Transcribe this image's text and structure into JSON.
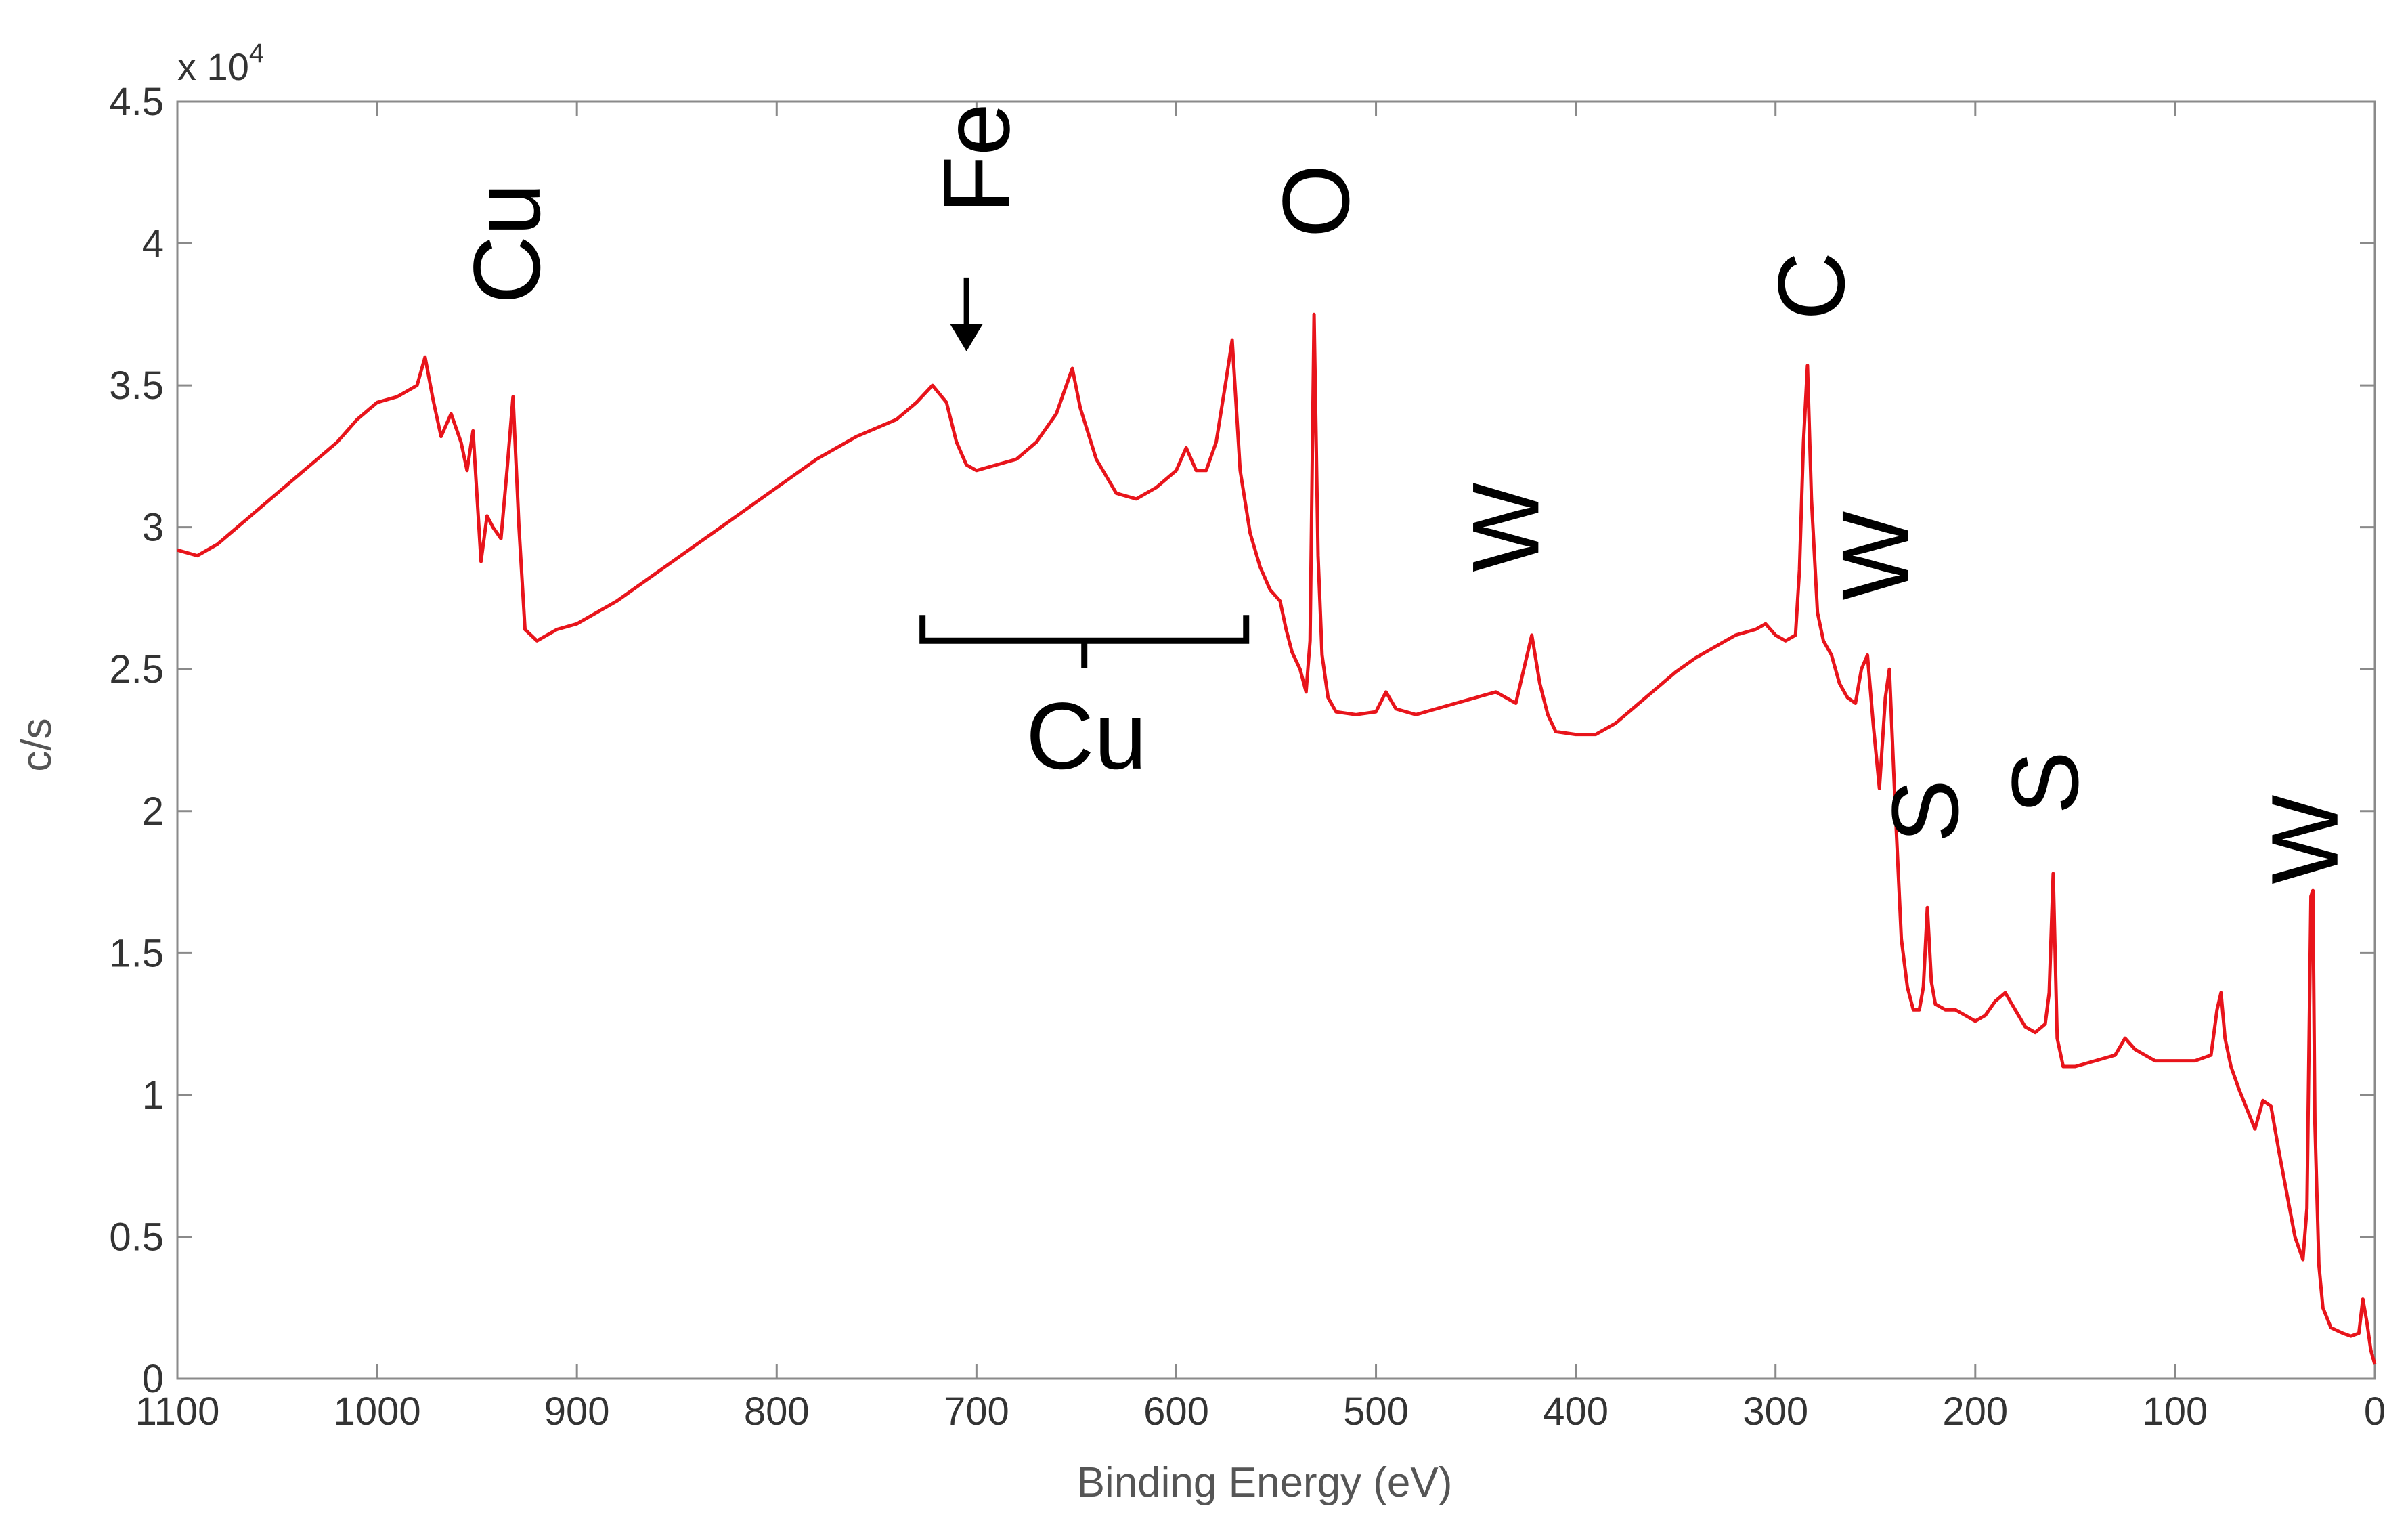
{
  "chart_data": {
    "type": "line",
    "xlabel": "Binding Energy (eV)",
    "ylabel": "c/s",
    "y_multiplier": "x 10",
    "y_multiplier_exp": "4",
    "xlim": [
      1100,
      0
    ],
    "ylim": [
      0,
      4.5
    ],
    "x_reversed": true,
    "x_ticks": [
      1100,
      1000,
      900,
      800,
      700,
      600,
      500,
      400,
      300,
      200,
      100,
      0
    ],
    "y_ticks": [
      0,
      0.5,
      1,
      1.5,
      2,
      2.5,
      3,
      3.5,
      4,
      4.5
    ],
    "x_tick_labels": [
      "1100",
      "1000",
      "900",
      "800",
      "700",
      "600",
      "500",
      "400",
      "300",
      "200",
      "100",
      "0"
    ],
    "y_tick_labels": [
      "0",
      "0.5",
      "1",
      "1.5",
      "2",
      "2.5",
      "3",
      "3.5",
      "4",
      "4.5"
    ],
    "grid": false,
    "series": [
      {
        "color": "#e8141b",
        "x": [
          1100,
          1090,
          1080,
          1070,
          1060,
          1050,
          1040,
          1030,
          1020,
          1010,
          1000,
          990,
          985,
          980,
          976,
          972,
          968,
          963,
          958,
          955,
          952,
          948,
          945,
          942,
          938,
          935,
          932,
          929,
          926,
          920,
          910,
          900,
          880,
          860,
          840,
          820,
          800,
          780,
          760,
          740,
          730,
          722,
          715,
          710,
          705,
          700,
          690,
          680,
          670,
          660,
          652,
          648,
          640,
          630,
          620,
          610,
          600,
          595,
          590,
          585,
          580,
          575,
          572,
          568,
          563,
          558,
          553,
          548,
          545,
          542,
          538,
          535,
          533,
          531,
          529,
          527,
          524,
          520,
          510,
          500,
          495,
          490,
          480,
          470,
          460,
          450,
          440,
          430,
          426,
          422,
          418,
          414,
          410,
          400,
          390,
          380,
          370,
          360,
          350,
          340,
          330,
          320,
          310,
          305,
          300,
          295,
          290,
          288,
          286,
          284,
          282,
          279,
          276,
          272,
          268,
          264,
          260,
          257,
          254,
          251,
          248,
          245,
          243,
          240,
          237,
          234,
          231,
          228,
          226,
          224,
          222,
          220,
          215,
          210,
          205,
          200,
          195,
          190,
          185,
          180,
          175,
          170,
          165,
          163,
          161,
          159,
          156,
          150,
          140,
          130,
          125,
          120,
          110,
          100,
          90,
          82,
          79,
          77,
          75,
          72,
          68,
          64,
          60,
          56,
          52,
          48,
          44,
          40,
          36,
          34,
          32,
          31,
          30,
          28,
          26,
          22,
          16,
          12,
          8,
          6,
          4,
          2,
          0
        ],
        "values": [
          2.92,
          2.9,
          2.94,
          3.0,
          3.06,
          3.12,
          3.18,
          3.24,
          3.3,
          3.38,
          3.44,
          3.46,
          3.48,
          3.5,
          3.6,
          3.45,
          3.32,
          3.4,
          3.3,
          3.2,
          3.34,
          2.88,
          3.04,
          3.0,
          2.96,
          3.2,
          3.46,
          3.0,
          2.64,
          2.6,
          2.64,
          2.66,
          2.74,
          2.84,
          2.94,
          3.04,
          3.14,
          3.24,
          3.32,
          3.38,
          3.44,
          3.5,
          3.44,
          3.3,
          3.22,
          3.2,
          3.22,
          3.24,
          3.3,
          3.4,
          3.56,
          3.42,
          3.24,
          3.12,
          3.1,
          3.14,
          3.2,
          3.28,
          3.2,
          3.2,
          3.3,
          3.52,
          3.66,
          3.2,
          2.98,
          2.86,
          2.78,
          2.74,
          2.64,
          2.56,
          2.5,
          2.42,
          2.6,
          3.75,
          2.9,
          2.55,
          2.4,
          2.35,
          2.34,
          2.35,
          2.42,
          2.36,
          2.34,
          2.36,
          2.38,
          2.4,
          2.42,
          2.38,
          2.5,
          2.62,
          2.45,
          2.34,
          2.28,
          2.27,
          2.27,
          2.31,
          2.37,
          2.43,
          2.49,
          2.54,
          2.58,
          2.62,
          2.64,
          2.66,
          2.62,
          2.6,
          2.62,
          2.85,
          3.3,
          3.57,
          3.1,
          2.7,
          2.6,
          2.55,
          2.45,
          2.4,
          2.38,
          2.5,
          2.55,
          2.3,
          2.08,
          2.4,
          2.5,
          2.0,
          1.55,
          1.38,
          1.3,
          1.3,
          1.38,
          1.66,
          1.4,
          1.32,
          1.3,
          1.3,
          1.28,
          1.26,
          1.28,
          1.33,
          1.36,
          1.3,
          1.24,
          1.22,
          1.25,
          1.36,
          1.78,
          1.2,
          1.1,
          1.1,
          1.12,
          1.14,
          1.2,
          1.16,
          1.12,
          1.12,
          1.12,
          1.14,
          1.3,
          1.36,
          1.2,
          1.1,
          1.02,
          0.95,
          0.88,
          0.98,
          0.96,
          0.8,
          0.65,
          0.5,
          0.42,
          0.6,
          1.7,
          1.72,
          0.9,
          0.4,
          0.25,
          0.18,
          0.16,
          0.15,
          0.16,
          0.28,
          0.2,
          0.1,
          0.05
        ]
      }
    ],
    "annotations": [
      {
        "text": "Cu",
        "x": 935,
        "y": 4.0,
        "rotated": true
      },
      {
        "text": "Fe",
        "x": 700,
        "y": 4.3,
        "rotated": true,
        "arrow_to": [
          705,
          3.62
        ]
      },
      {
        "text": "O",
        "x": 530,
        "y": 4.15,
        "rotated": true
      },
      {
        "text": "W",
        "x": 435,
        "y": 3.0,
        "rotated": true
      },
      {
        "text": "C",
        "x": 282,
        "y": 3.85,
        "rotated": true
      },
      {
        "text": "W",
        "x": 250,
        "y": 2.9,
        "rotated": true
      },
      {
        "text": "S",
        "x": 225,
        "y": 2.0,
        "rotated": true
      },
      {
        "text": "S",
        "x": 165,
        "y": 2.1,
        "rotated": true
      },
      {
        "text": "W",
        "x": 35,
        "y": 1.9,
        "rotated": true
      },
      {
        "text": "Cu",
        "x": 645,
        "y": 2.15,
        "rotated": false,
        "bracket": [
          727,
          565
        ]
      }
    ]
  }
}
